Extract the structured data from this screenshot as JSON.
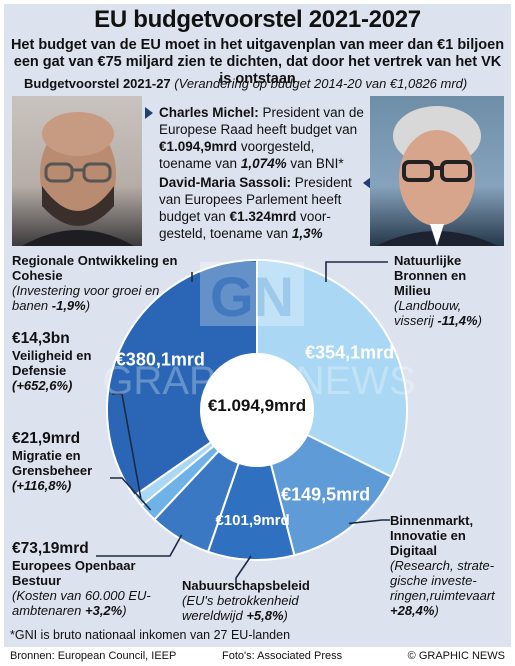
{
  "header": {
    "title": "EU budgetvoorstel 2021-2027",
    "subtitle": "Het budget van de EU moet in het uitgavenplan van meer dan €1 biljoen een gat van €75 miljard zien te dichten, dat door het vertrek van het VK is ontstaan",
    "chart_label": "Budgetvoorstel 2021-27",
    "chart_label_note": "(Verandering op budget 2014-20 van €1,0826 mrd)"
  },
  "bios": {
    "michel": {
      "name": "Charles Michel:",
      "t1": " President van de Europese Raad heeft budget van ",
      "amount": "€1.094,9mrd",
      "t2": " voorgesteld, toename van ",
      "pct": "1,074%",
      "t3": " van BNI*"
    },
    "sassoli": {
      "name": "David-Maria Sassoli:",
      "t1": " President van Europees Parlement heeft budget van ",
      "amount": "€1.324mrd",
      "t2": " voor­gesteld, toename van ",
      "pct": "1,3%"
    }
  },
  "labels": {
    "cohesie": {
      "title": "Regionale Ontwikkeling en Cohesie",
      "desc_pre": "(Investering voor groei en banen ",
      "change": "-1,9%",
      "desc_post": ")"
    },
    "natuur": {
      "title": "Natuurlijke Bronnen en Milieu",
      "desc_pre": "(Landbouw, visserij ",
      "change": "-11,4%",
      "desc_post": ")"
    },
    "veiligheid": {
      "amount": "€14,3bn",
      "title": "Veiligheid en Defensie",
      "change": "(+652,6%)"
    },
    "migratie": {
      "amount": "€21,9mrd",
      "title": "Migratie en Grens­beheer",
      "change": "(+116,8%)"
    },
    "bestuur": {
      "amount": "€73,19mrd",
      "title": "Europees Openbaar Bestuur",
      "desc_pre": "(Kosten van 60.000 EU-ambtenaren ",
      "change": "+3,2%",
      "desc_post": ")"
    },
    "nabuur": {
      "title": "Nabuurschapsbeleid",
      "desc_pre": "(EU's betrokkenheid wereldwijd ",
      "change": "+5,8%",
      "desc_post": ")"
    },
    "binnenmarkt": {
      "title": "Binnenmarkt, Innovatie en Digitaal",
      "desc_pre": "(Research, strate­gische investe­ringen,ruimtevaart ",
      "change": "+28,4%",
      "desc_post": ")"
    }
  },
  "chart_data": {
    "type": "pie",
    "center_label": "€1.094,9mrd",
    "slices": [
      {
        "name": "Natuurlijke Bronnen en Milieu",
        "value": 354.1,
        "label": "€354,1mrd",
        "color": "#a9d7f4"
      },
      {
        "name": "Binnenmarkt, Innovatie en Digitaal",
        "value": 149.5,
        "label": "€149,5mrd",
        "color": "#5f9bd6"
      },
      {
        "name": "Nabuurschapsbeleid",
        "value": 101.9,
        "label": "€101,9mrd",
        "color": "#2f70c0"
      },
      {
        "name": "Europees Openbaar Bestuur",
        "value": 73.19,
        "label": "",
        "color": "#3b78c3"
      },
      {
        "name": "Migratie en Grensbeheer",
        "value": 21.9,
        "label": "",
        "color": "#6fb2e8"
      },
      {
        "name": "Veiligheid en Defensie",
        "value": 14.3,
        "label": "",
        "color": "#a9d7f4"
      },
      {
        "name": "Regionale Ontwikkeling en Cohesie",
        "value": 380.1,
        "label": "€380,1mrd",
        "color": "#2a66b5"
      }
    ]
  },
  "footnote": "*GNI is bruto nationaal inkomen van 27 EU-landen",
  "footer": {
    "sources": "Bronnen: European Council, IEEP",
    "photos": "Foto's: Associated Press",
    "copyright": "© GRAPHIC NEWS"
  },
  "watermark": {
    "logo": "GN",
    "text": "GRAPHIC NEWS"
  },
  "colors": {
    "accent_dark": "#1f3f75",
    "background": "#dde2ef"
  }
}
